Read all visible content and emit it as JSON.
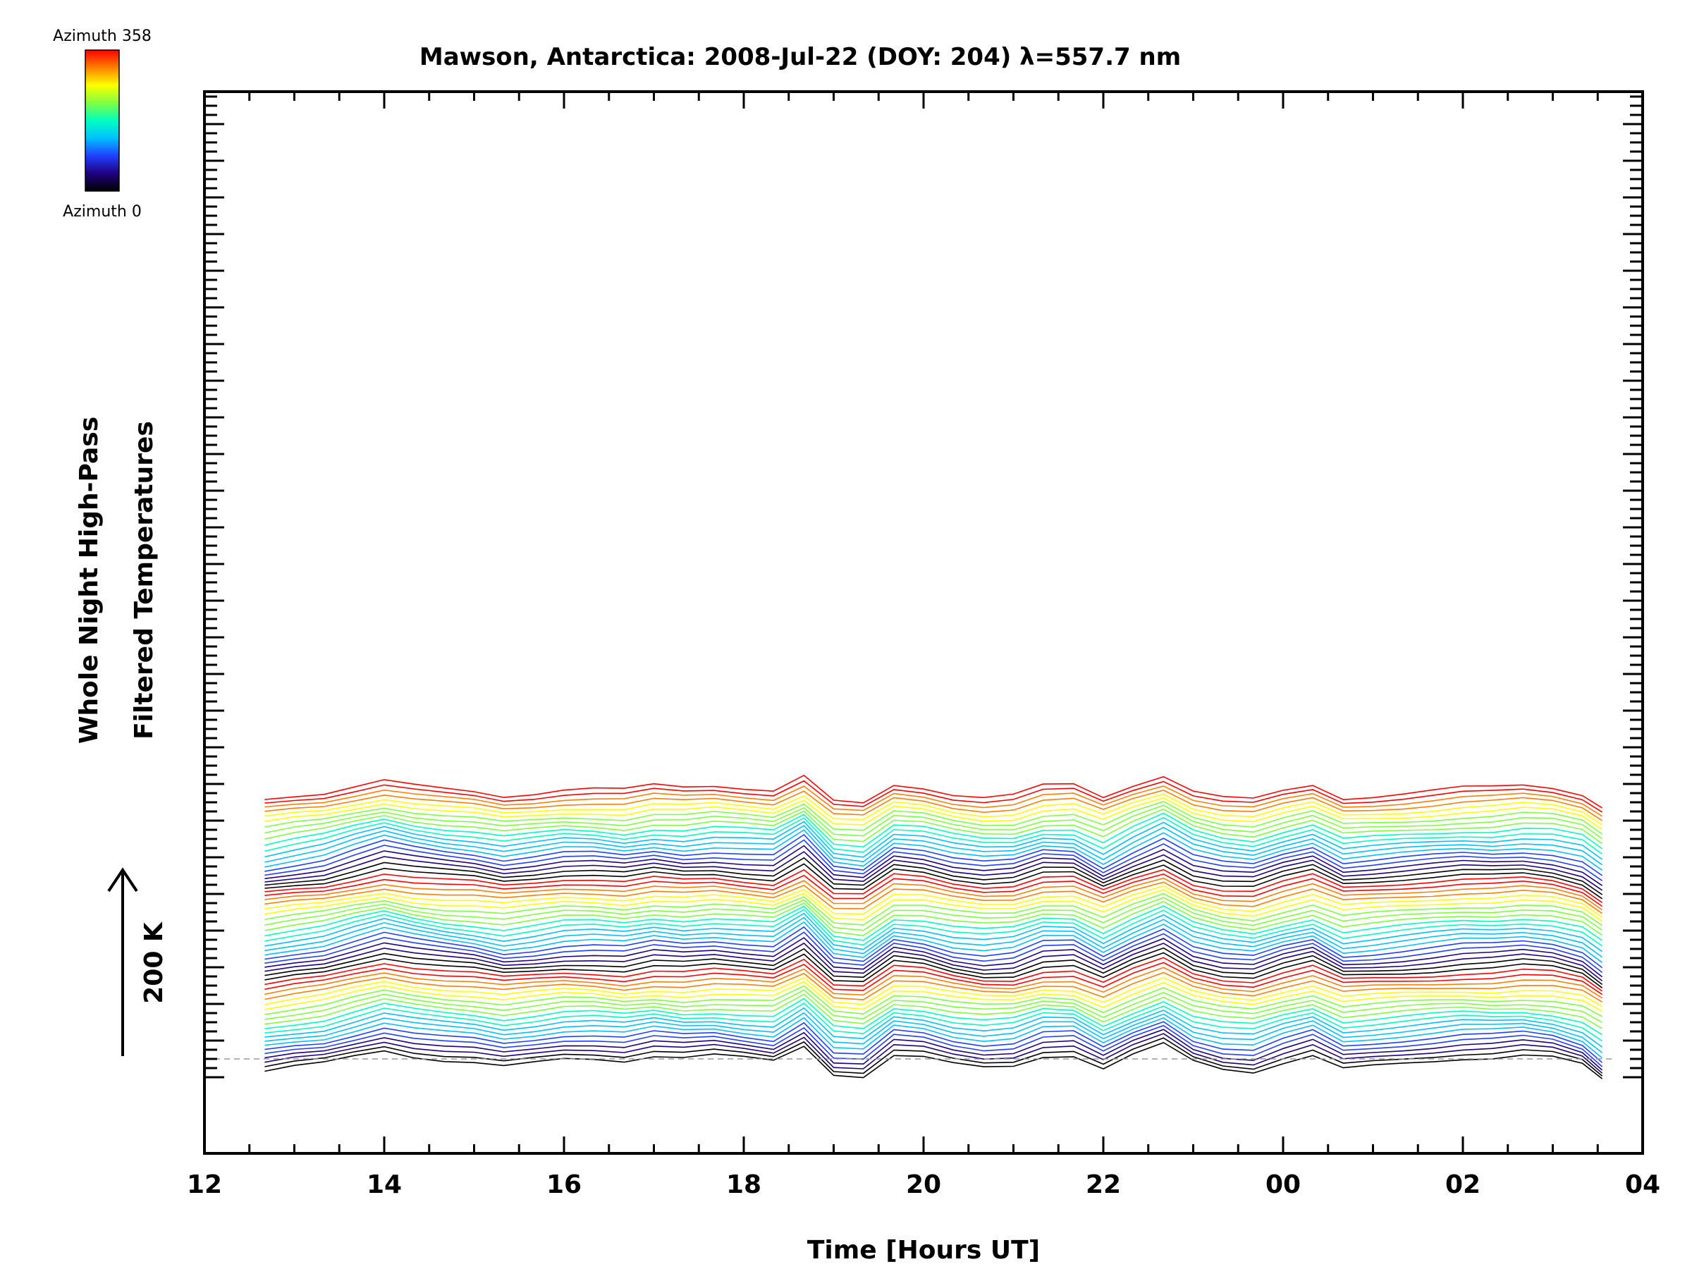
{
  "colorbar": {
    "top_label": "Azimuth 358",
    "bottom_label": "Azimuth 0",
    "gradient": [
      "#ff0000",
      "#ff8000",
      "#ffff00",
      "#80ff40",
      "#00ffc0",
      "#00c0ff",
      "#2040ff",
      "#200080",
      "#000000"
    ]
  },
  "chart_data": {
    "type": "line",
    "title": "Mawson, Antarctica: 2008-Jul-22 (DOY: 204) λ=557.7 nm",
    "xlabel": "Time [Hours UT]",
    "ylabel": [
      "Whole Night High-Pass",
      "Filtered Temperatures"
    ],
    "scale_label": "200 K",
    "x_ticks": [
      "12",
      "14",
      "16",
      "18",
      "20",
      "22",
      "00",
      "02",
      "04"
    ],
    "xlim": [
      12,
      28
    ],
    "n_traces": 60,
    "trace_offset_K": 20,
    "baseline_style": "dashed",
    "grid": false,
    "legend": "none",
    "colormap": "rainbow (azimuth 0 → 358)",
    "data_start_hour": 12.67,
    "data_end_hour": 27.55,
    "series": [
      {
        "name": "",
        "description": "Azimuth 0 trace (bottom); each subsequent trace stacked upward",
        "x": [
          12.67,
          13.0,
          13.33,
          13.67,
          14.0,
          14.33,
          14.67,
          15.0,
          15.33,
          15.67,
          16.0,
          16.33,
          16.67,
          17.0,
          17.33,
          17.67,
          18.0,
          18.33,
          18.67,
          19.0,
          19.33,
          19.67,
          20.0,
          20.33,
          20.67,
          21.0,
          21.33,
          21.67,
          22.0,
          22.33,
          22.67,
          23.0,
          23.33,
          23.67,
          24.0,
          24.33,
          24.67,
          25.0,
          25.33,
          25.67,
          26.0,
          26.33,
          26.67,
          27.0,
          27.33,
          27.55
        ],
        "y": [
          -30,
          -20,
          -12,
          5,
          20,
          8,
          0,
          -5,
          -15,
          -8,
          0,
          0,
          -5,
          5,
          0,
          5,
          0,
          -5,
          30,
          -30,
          -35,
          10,
          5,
          -10,
          -18,
          -15,
          5,
          5,
          -25,
          5,
          30,
          -5,
          -20,
          -25,
          -5,
          10,
          -20,
          -15,
          -10,
          -5,
          0,
          0,
          5,
          0,
          -15,
          -45
        ]
      }
    ]
  }
}
